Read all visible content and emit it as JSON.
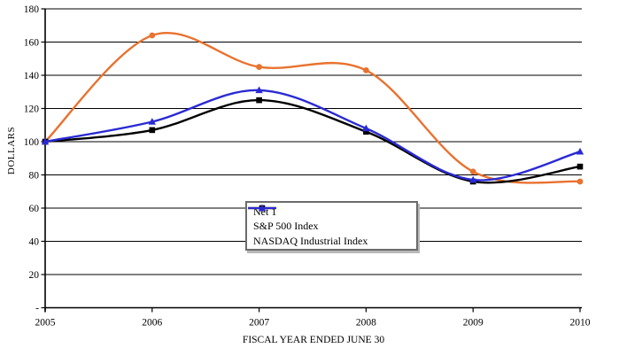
{
  "chart_data": {
    "type": "line",
    "title": "",
    "xlabel": "FISCAL YEAR ENDED JUNE 30",
    "ylabel": "DOLLARS",
    "x": [
      2005,
      2006,
      2007,
      2008,
      2009,
      2010
    ],
    "xtick_labels": [
      "2005",
      "2006",
      "2007",
      "2008",
      "2009",
      "2010"
    ],
    "ylim": [
      0,
      180
    ],
    "ytick_values": [
      180,
      160,
      140,
      120,
      100,
      80,
      60,
      40,
      20,
      0
    ],
    "ytick_labels": [
      "180",
      "160",
      "140",
      "120",
      "100",
      "80",
      "60",
      "40",
      "20",
      "-"
    ],
    "grid": "horizontal-only",
    "smoothed_lines": true,
    "legend_position": "inside-bottom-center-box",
    "series": [
      {
        "name": "Net 1",
        "color": "#E8722F",
        "marker": "circle",
        "values": [
          100,
          164,
          145,
          143,
          82,
          76
        ]
      },
      {
        "name": "S&P 500 Index",
        "color": "#000000",
        "marker": "square",
        "values": [
          100,
          107,
          125,
          106,
          76,
          85
        ]
      },
      {
        "name": "NASDAQ Industrial Index",
        "color": "#2A2AD4",
        "marker": "triangle-up",
        "values": [
          100,
          112,
          131,
          108,
          77,
          94
        ]
      }
    ]
  }
}
